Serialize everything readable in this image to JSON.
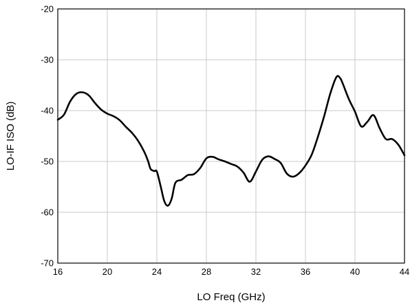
{
  "chart_data": {
    "type": "line",
    "title": "",
    "xlabel": "LO Freq (GHz)",
    "ylabel": "LO-IF ISO (dB)",
    "xlim": [
      16,
      44
    ],
    "ylim": [
      -70,
      -20
    ],
    "grid": true,
    "x_ticks": [
      16,
      20,
      24,
      28,
      32,
      36,
      40,
      44
    ],
    "y_ticks": [
      -20,
      -30,
      -40,
      -50,
      -60,
      -70
    ],
    "x_tick_labels": [
      "16",
      "20",
      "24",
      "28",
      "32",
      "36",
      "40",
      "44"
    ],
    "y_tick_labels": [
      "-20",
      "-30",
      "-40",
      "-50",
      "-60",
      "-70"
    ],
    "series": [
      {
        "x": [
          16.0,
          16.5,
          17.0,
          17.5,
          18.0,
          18.5,
          19.0,
          19.5,
          20.0,
          20.5,
          21.0,
          21.5,
          22.0,
          22.5,
          23.0,
          23.3,
          23.5,
          23.8,
          24.0,
          24.3,
          24.6,
          24.9,
          25.2,
          25.5,
          26.0,
          26.5,
          27.0,
          27.5,
          28.0,
          28.5,
          29.0,
          29.5,
          30.0,
          30.5,
          31.0,
          31.5,
          32.0,
          32.5,
          33.0,
          33.5,
          34.0,
          34.5,
          35.0,
          35.5,
          36.0,
          36.5,
          37.0,
          37.5,
          38.0,
          38.5,
          38.8,
          39.0,
          39.5,
          40.0,
          40.5,
          41.0,
          41.5,
          42.0,
          42.5,
          43.0,
          43.5,
          44.0
        ],
        "values": [
          -41.8,
          -40.8,
          -38.2,
          -36.7,
          -36.4,
          -37.0,
          -38.5,
          -39.8,
          -40.6,
          -41.1,
          -41.9,
          -43.2,
          -44.4,
          -46.0,
          -48.2,
          -50.0,
          -51.5,
          -51.9,
          -52.0,
          -54.8,
          -57.8,
          -58.7,
          -57.3,
          -54.2,
          -53.6,
          -52.7,
          -52.5,
          -51.3,
          -49.4,
          -49.1,
          -49.6,
          -50.0,
          -50.5,
          -51.0,
          -52.2,
          -54.0,
          -52.0,
          -49.7,
          -49.0,
          -49.5,
          -50.3,
          -52.4,
          -53.0,
          -52.3,
          -50.8,
          -48.7,
          -45.2,
          -41.2,
          -36.7,
          -33.4,
          -33.6,
          -34.6,
          -37.7,
          -40.2,
          -43.1,
          -42.2,
          -40.9,
          -43.5,
          -45.6,
          -45.6,
          -46.7,
          -48.8
        ]
      }
    ]
  }
}
